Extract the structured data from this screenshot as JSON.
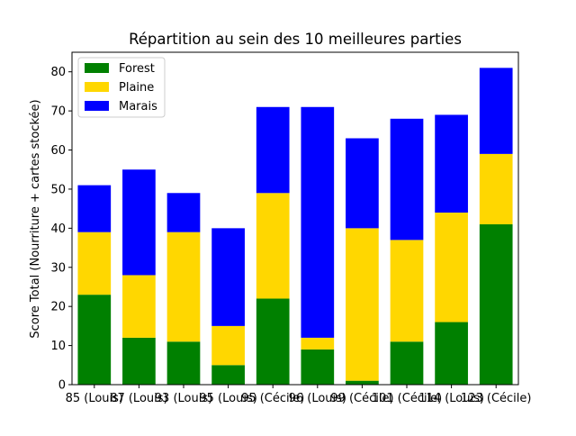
{
  "chart_data": {
    "type": "bar",
    "stacked": true,
    "title": "Répartition au sein des 10 meilleures parties",
    "xlabel": "",
    "ylabel": "Score Total (Nourriture + cartes stockée)",
    "ylim": [
      0,
      85
    ],
    "yticks": [
      0,
      10,
      20,
      30,
      40,
      50,
      60,
      70,
      80
    ],
    "grid": false,
    "legend_position": "top-left",
    "categories": [
      "85 (Louis)",
      "87 (Louis)",
      "93 (Louis)",
      "95 (Louis)",
      "95 (Cécile)",
      "96 (Louis)",
      "99 (Cécile)",
      "101 (Cécile)",
      "114 (Louis)",
      "123 (Cécile)"
    ],
    "series": [
      {
        "name": "Forest",
        "color": "#008000",
        "values": [
          23,
          12,
          11,
          5,
          22,
          9,
          1,
          11,
          16,
          41
        ]
      },
      {
        "name": "Plaine",
        "color": "#ffd700",
        "values": [
          16,
          16,
          28,
          10,
          27,
          3,
          39,
          26,
          28,
          18
        ]
      },
      {
        "name": "Marais",
        "color": "#0000ff",
        "values": [
          12,
          27,
          10,
          25,
          22,
          59,
          23,
          31,
          25,
          22
        ]
      }
    ]
  }
}
